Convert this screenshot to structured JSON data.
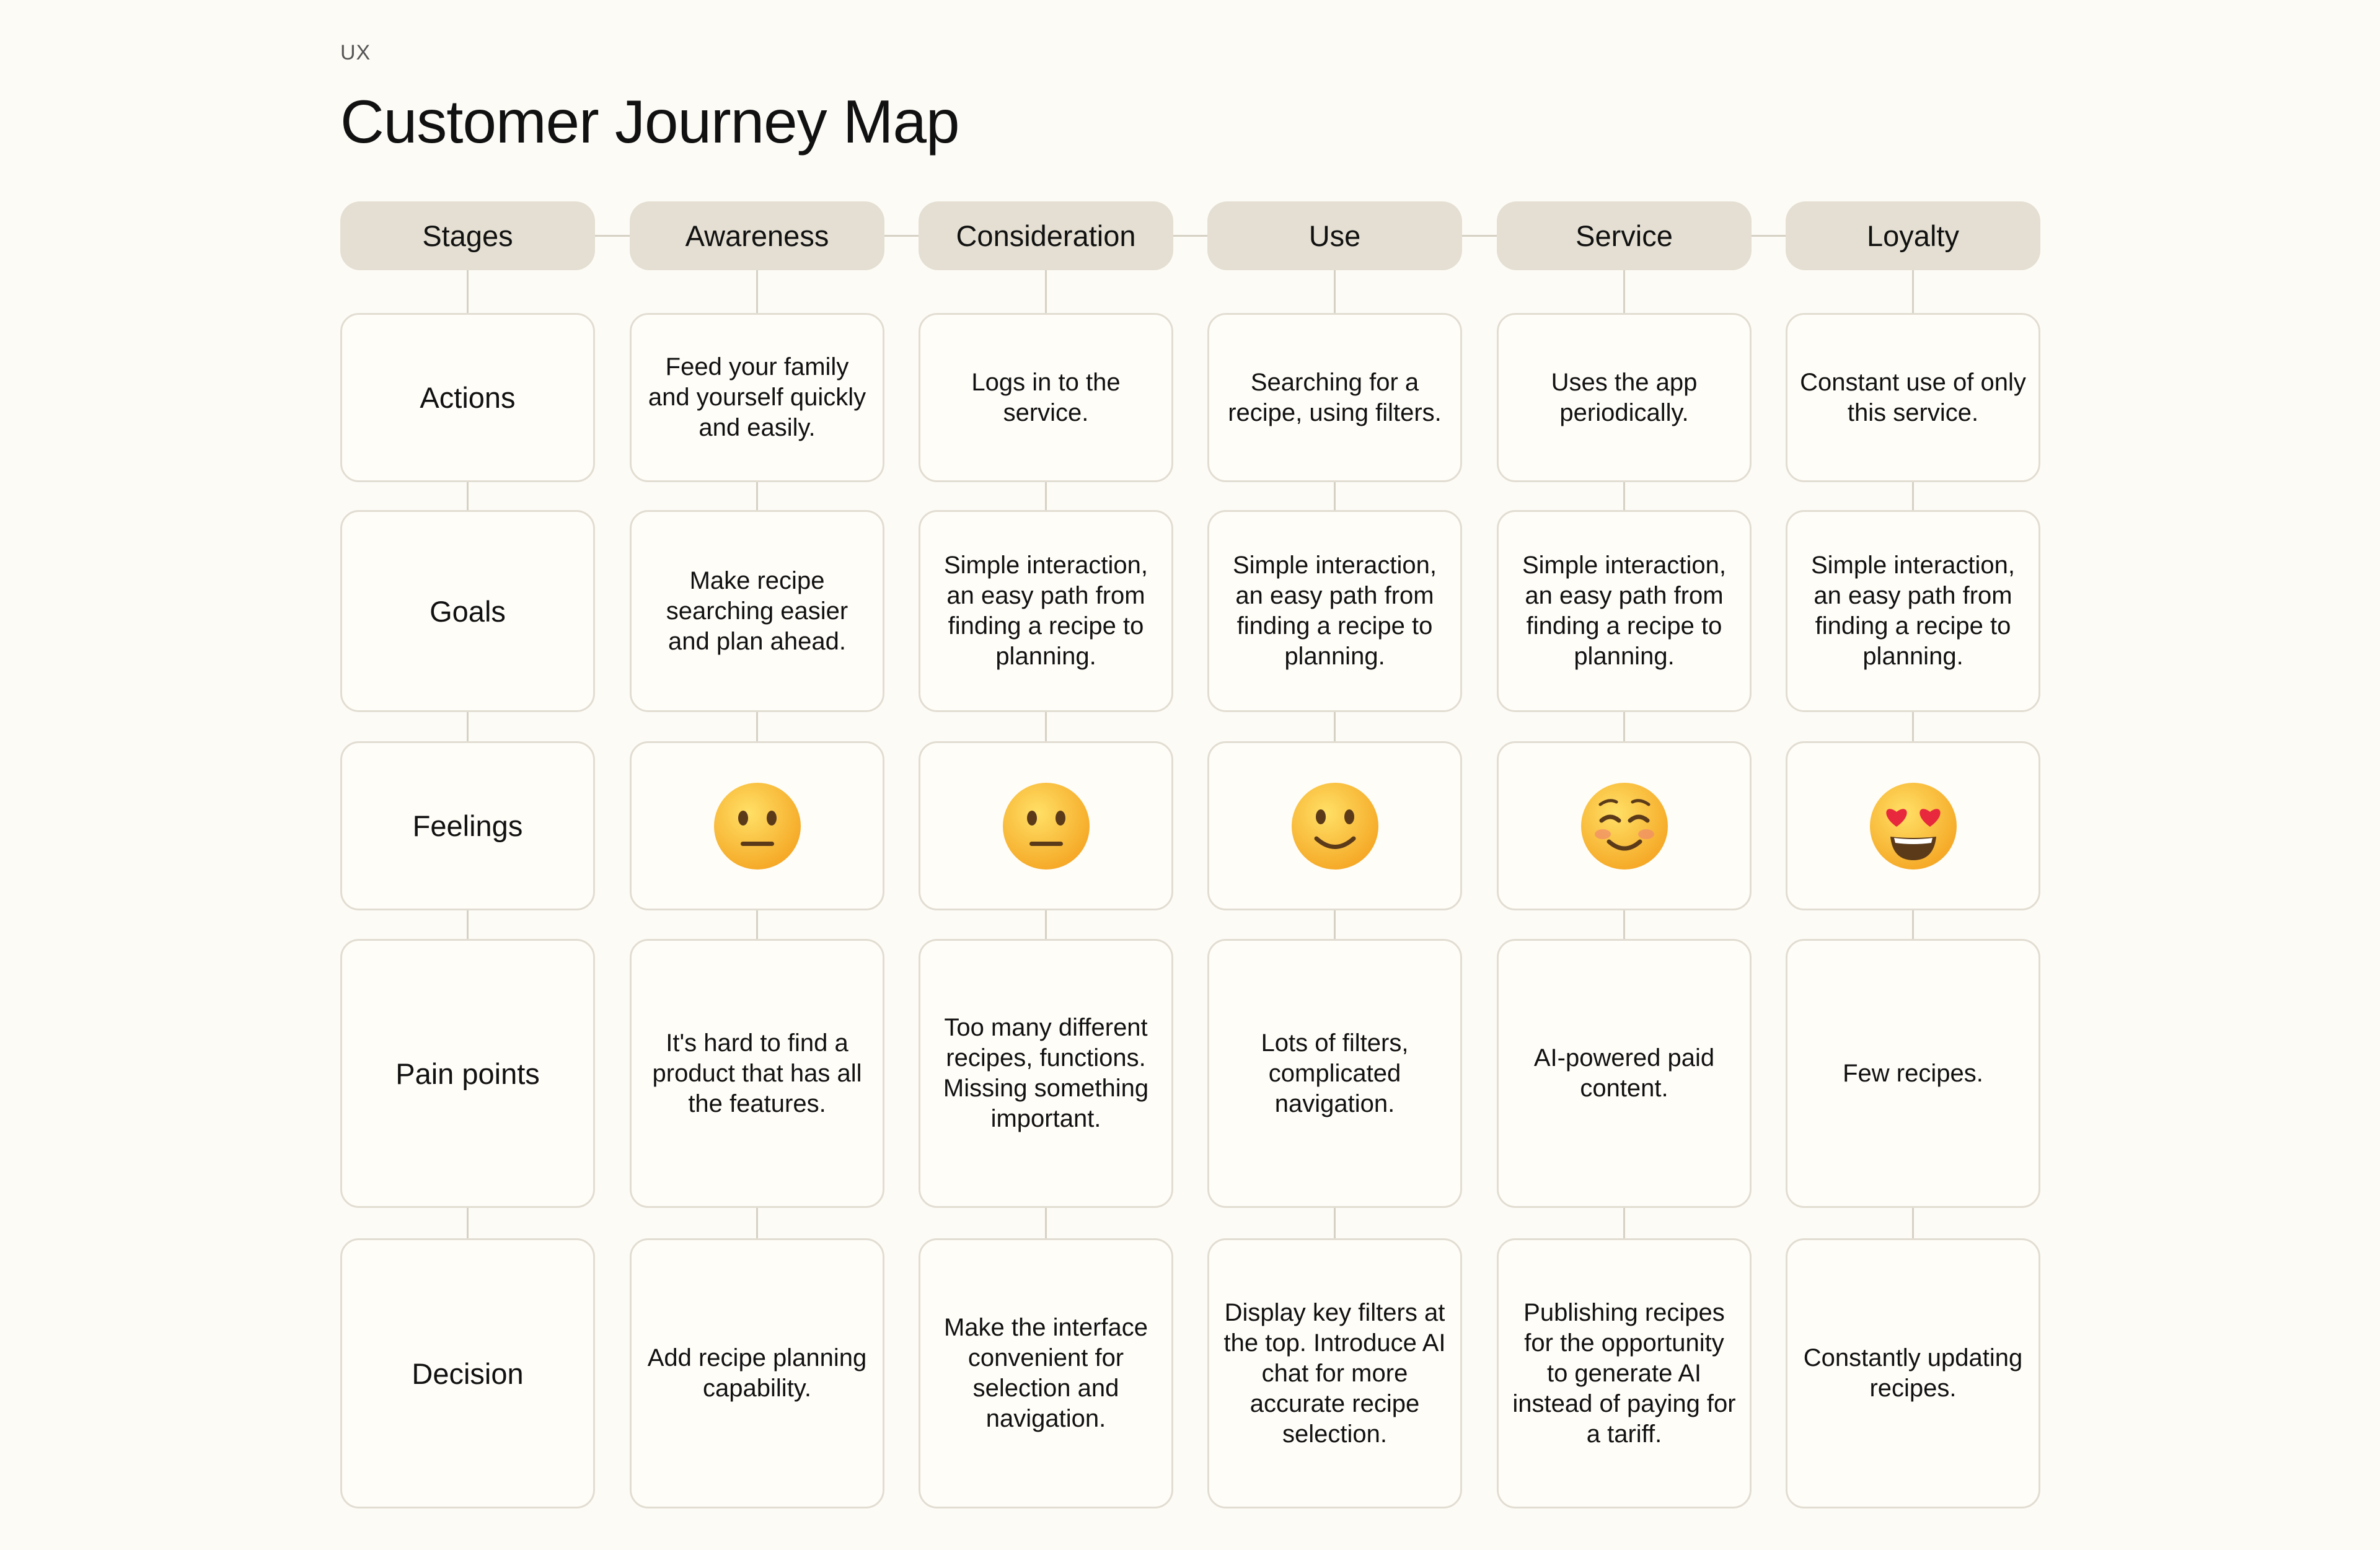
{
  "header": {
    "eyebrow": "UX",
    "title": "Customer Journey Map"
  },
  "stages_label": "Stages",
  "stages": [
    "Awareness",
    "Consideration",
    "Use",
    "Service",
    "Loyalty"
  ],
  "rows": [
    {
      "label": "Actions",
      "cells": [
        "Feed your family and yourself quickly and easily.",
        "Logs in to the service.",
        "Searching for a recipe, using filters.",
        "Uses the app periodically.",
        "Constant use of only this service."
      ]
    },
    {
      "label": "Goals",
      "cells": [
        "Make recipe searching easier and plan ahead.",
        "Simple interaction, an easy path from finding a recipe to planning.",
        "Simple interaction, an easy path from finding a recipe to planning.",
        "Simple interaction, an easy path from finding a recipe to planning.",
        "Simple interaction, an easy path from finding a recipe to planning."
      ]
    },
    {
      "label": "Feelings",
      "emojis": [
        "neutral-face-icon",
        "neutral-face-icon",
        "slightly-smiling-face-icon",
        "smiling-face-icon",
        "heart-eyes-face-icon"
      ]
    },
    {
      "label": "Pain points",
      "cells": [
        "It's hard to find a product that has all the features.",
        "Too many different recipes, functions. Missing something important.",
        "Lots of filters, complicated navigation.",
        "AI-powered paid content.",
        "Few recipes."
      ]
    },
    {
      "label": "Decision",
      "cells": [
        "Add recipe planning capability.",
        "Make the interface convenient for selection and navigation.",
        "Display key filters at the top. Introduce AI chat for more accurate recipe selection.",
        "Publishing recipes for the opportunity to generate AI instead of paying for a tariff.",
        "Constantly updating recipes."
      ]
    }
  ],
  "colors": {
    "background": "#fdfbf6",
    "pill": "#e4dfd2",
    "cell_border": "#e2ddd2",
    "connector": "#d6d1c5",
    "emoji_face": "#fbc531"
  }
}
